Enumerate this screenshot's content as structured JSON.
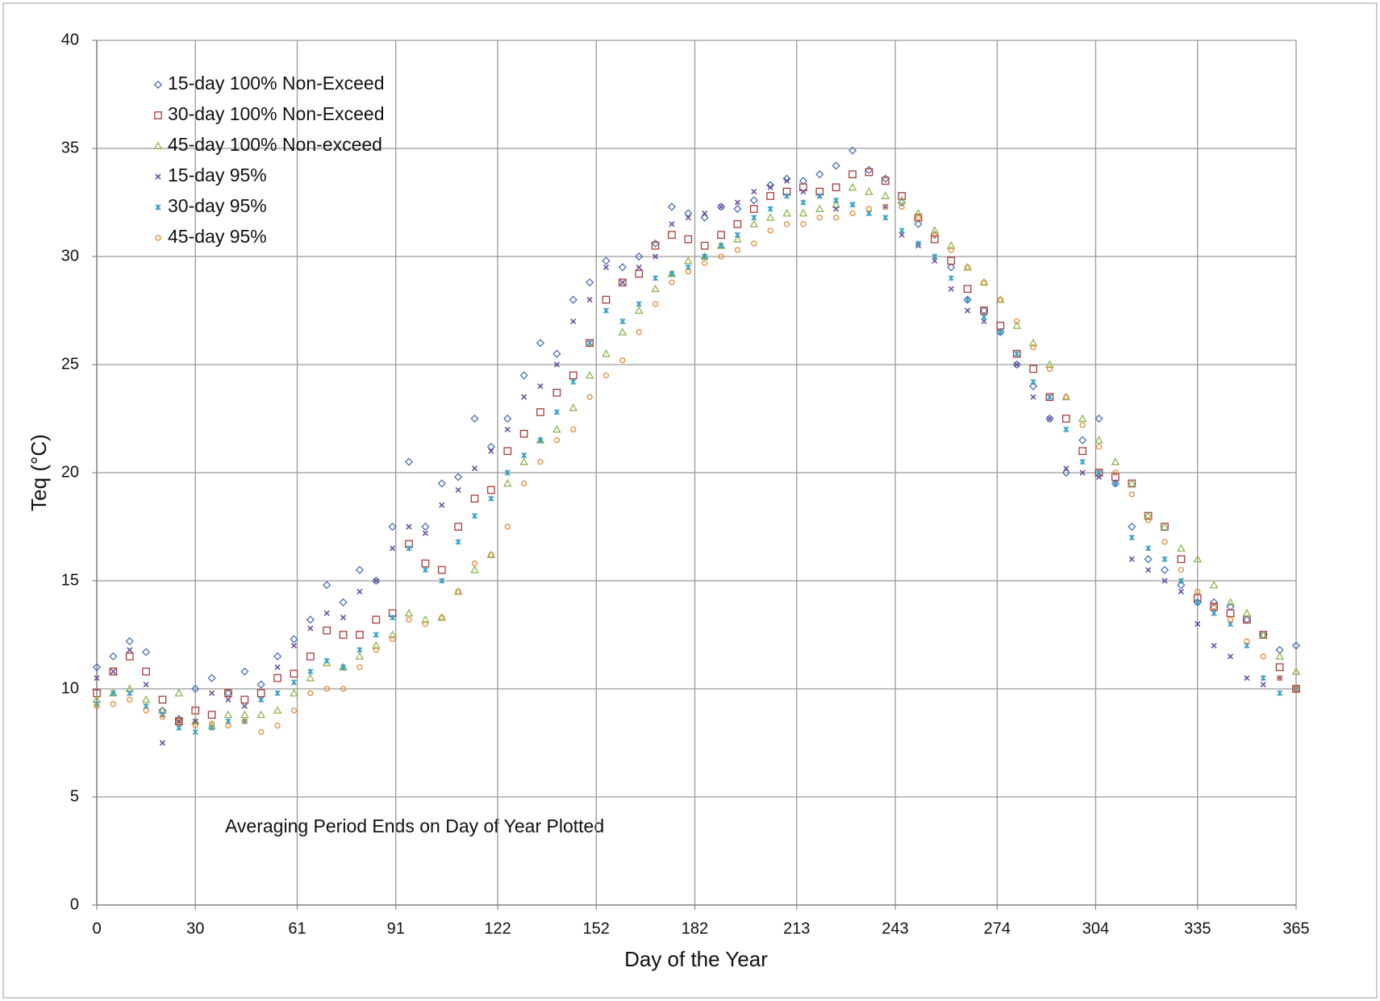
{
  "chart_data": {
    "type": "scatter",
    "x_label": "Day of the Year",
    "y_label": "Teq  (°C)",
    "annotation": "Averaging Period Ends on Day of Year Plotted",
    "xlim": [
      0,
      365
    ],
    "xticks": [
      0,
      30,
      61,
      91,
      122,
      152,
      182,
      213,
      243,
      274,
      304,
      335,
      365
    ],
    "ylim": [
      0,
      40
    ],
    "yticks": [
      0,
      5,
      10,
      15,
      20,
      25,
      30,
      35,
      40
    ],
    "grid": true,
    "legend": "top-left",
    "x": [
      0,
      5,
      10,
      15,
      20,
      25,
      30,
      35,
      40,
      45,
      50,
      55,
      60,
      65,
      70,
      75,
      80,
      85,
      90,
      95,
      100,
      105,
      110,
      115,
      120,
      125,
      130,
      135,
      140,
      145,
      150,
      155,
      160,
      165,
      170,
      175,
      180,
      185,
      190,
      195,
      200,
      205,
      210,
      215,
      220,
      225,
      230,
      235,
      240,
      245,
      250,
      255,
      260,
      265,
      270,
      275,
      280,
      285,
      290,
      295,
      300,
      305,
      310,
      315,
      320,
      325,
      330,
      335,
      340,
      345,
      350,
      355,
      360,
      365
    ],
    "series": [
      {
        "name": "15-day 100% Non-Exceed",
        "color": "#4a6fb5",
        "marker": "diamond",
        "values": [
          11.0,
          11.5,
          12.2,
          11.7,
          9.0,
          8.6,
          10.0,
          10.5,
          9.8,
          10.8,
          10.2,
          11.5,
          12.3,
          13.2,
          14.8,
          14.0,
          15.5,
          15.0,
          17.5,
          20.5,
          17.5,
          19.5,
          19.8,
          22.5,
          21.2,
          22.5,
          24.5,
          26.0,
          25.5,
          28.0,
          28.8,
          29.8,
          29.5,
          30.0,
          30.6,
          32.3,
          32.0,
          31.8,
          32.3,
          32.2,
          32.6,
          33.3,
          33.6,
          33.5,
          33.8,
          34.2,
          34.9,
          34.0,
          33.6,
          32.5,
          31.5,
          31.0,
          29.5,
          28.0,
          27.5,
          26.5,
          25.0,
          24.0,
          22.5,
          20.0,
          21.5,
          22.5,
          19.5,
          17.5,
          16.0,
          15.5,
          14.8,
          14.0,
          14.0,
          13.8,
          13.2,
          12.5,
          11.8,
          12.0
        ]
      },
      {
        "name": "30-day 100% Non-Exceed",
        "color": "#a83c3a",
        "marker": "square",
        "values": [
          9.8,
          10.8,
          11.5,
          10.8,
          9.5,
          8.5,
          9.0,
          8.8,
          9.8,
          9.5,
          9.8,
          10.5,
          10.7,
          11.5,
          12.7,
          12.5,
          12.5,
          13.2,
          13.5,
          16.7,
          15.8,
          15.5,
          17.5,
          18.8,
          19.2,
          21.0,
          21.8,
          22.8,
          23.7,
          24.5,
          26.0,
          28.0,
          28.8,
          29.2,
          30.5,
          31.0,
          30.8,
          30.5,
          31.0,
          31.5,
          32.2,
          32.8,
          33.0,
          33.2,
          33.0,
          33.2,
          33.8,
          33.9,
          33.5,
          32.8,
          31.8,
          30.8,
          29.8,
          28.5,
          27.5,
          26.8,
          25.5,
          24.8,
          23.5,
          22.5,
          21.0,
          20.0,
          19.8,
          19.5,
          18.0,
          17.5,
          16.0,
          14.2,
          13.8,
          13.5,
          13.2,
          12.5,
          11.0,
          10.0
        ]
      },
      {
        "name": "45-day 100% Non-exceed",
        "color": "#8db553",
        "marker": "triangle",
        "values": [
          9.5,
          9.8,
          10.0,
          9.5,
          9.0,
          9.8,
          8.5,
          8.3,
          8.8,
          8.8,
          8.8,
          9.0,
          9.8,
          10.5,
          11.2,
          11.0,
          11.5,
          12.0,
          12.5,
          13.5,
          13.2,
          13.3,
          14.5,
          15.5,
          16.2,
          19.5,
          20.5,
          21.5,
          22.0,
          23.0,
          24.5,
          25.5,
          26.5,
          27.5,
          28.5,
          29.2,
          29.8,
          30.0,
          30.5,
          30.8,
          31.5,
          31.8,
          32.0,
          32.0,
          32.2,
          32.4,
          33.2,
          33.0,
          32.8,
          32.6,
          32.0,
          31.2,
          30.5,
          29.5,
          28.8,
          28.0,
          26.8,
          26.0,
          25.0,
          23.5,
          22.5,
          21.5,
          20.5,
          19.5,
          18.0,
          17.5,
          16.5,
          16.0,
          14.8,
          14.0,
          13.5,
          12.5,
          11.5,
          10.8
        ]
      },
      {
        "name": "15-day 95%",
        "color": "#6a4f9e",
        "marker": "x",
        "values": [
          10.5,
          10.8,
          11.8,
          10.2,
          7.5,
          8.5,
          8.5,
          9.8,
          9.5,
          9.2,
          9.5,
          11.0,
          12.0,
          12.8,
          13.5,
          13.3,
          14.5,
          15.0,
          16.5,
          17.5,
          17.2,
          18.5,
          19.2,
          20.2,
          21.0,
          22.0,
          23.5,
          24.0,
          25.0,
          27.0,
          28.0,
          29.5,
          28.8,
          29.5,
          30.0,
          31.5,
          31.8,
          32.0,
          32.3,
          32.5,
          33.0,
          33.2,
          33.5,
          33.0,
          32.8,
          32.2,
          32.4,
          32.0,
          32.3,
          31.0,
          30.5,
          29.8,
          28.5,
          27.5,
          27.0,
          26.5,
          25.0,
          23.5,
          22.5,
          20.2,
          20.0,
          19.8,
          19.5,
          16.0,
          15.5,
          15.0,
          14.5,
          13.0,
          12.0,
          11.5,
          10.5,
          10.2,
          10.5,
          10.0
        ]
      },
      {
        "name": "30-day 95%",
        "color": "#3aa0c0",
        "marker": "star",
        "values": [
          9.3,
          9.8,
          9.8,
          9.2,
          8.8,
          8.2,
          8.0,
          8.2,
          8.5,
          8.5,
          9.5,
          9.8,
          10.3,
          10.8,
          11.3,
          11.0,
          11.8,
          12.5,
          13.3,
          16.5,
          15.5,
          15.0,
          16.8,
          18.0,
          18.8,
          20.0,
          20.8,
          21.5,
          22.8,
          24.2,
          26.0,
          27.5,
          27.0,
          27.8,
          29.0,
          29.2,
          29.5,
          30.0,
          30.5,
          31.0,
          31.8,
          32.2,
          32.8,
          32.5,
          32.8,
          32.6,
          32.4,
          32.0,
          31.8,
          31.2,
          30.6,
          30.0,
          29.0,
          28.0,
          27.2,
          26.5,
          25.5,
          24.2,
          23.5,
          22.0,
          20.5,
          20.0,
          19.5,
          17.0,
          16.5,
          16.0,
          15.0,
          14.0,
          13.5,
          13.0,
          12.0,
          10.5,
          9.8,
          10.0
        ]
      },
      {
        "name": "45-day 95%",
        "color": "#e48a3a",
        "marker": "circle",
        "values": [
          9.2,
          9.3,
          9.5,
          9.0,
          8.7,
          8.5,
          8.3,
          8.4,
          8.3,
          8.5,
          8.0,
          8.3,
          9.0,
          9.8,
          10.0,
          10.0,
          11.0,
          11.8,
          12.3,
          13.2,
          13.0,
          13.3,
          14.5,
          15.8,
          16.2,
          17.5,
          19.5,
          20.5,
          21.5,
          22.0,
          23.5,
          24.5,
          25.2,
          26.5,
          27.8,
          28.8,
          29.3,
          29.7,
          30.0,
          30.3,
          30.6,
          31.2,
          31.5,
          31.5,
          31.8,
          31.8,
          32.0,
          32.2,
          32.3,
          32.3,
          31.8,
          31.0,
          30.3,
          29.5,
          28.8,
          28.0,
          27.0,
          25.8,
          24.8,
          23.5,
          22.2,
          21.2,
          20.0,
          19.0,
          17.8,
          16.8,
          15.5,
          14.5,
          13.8,
          13.2,
          12.2,
          11.5,
          10.5,
          10.0
        ]
      }
    ]
  }
}
